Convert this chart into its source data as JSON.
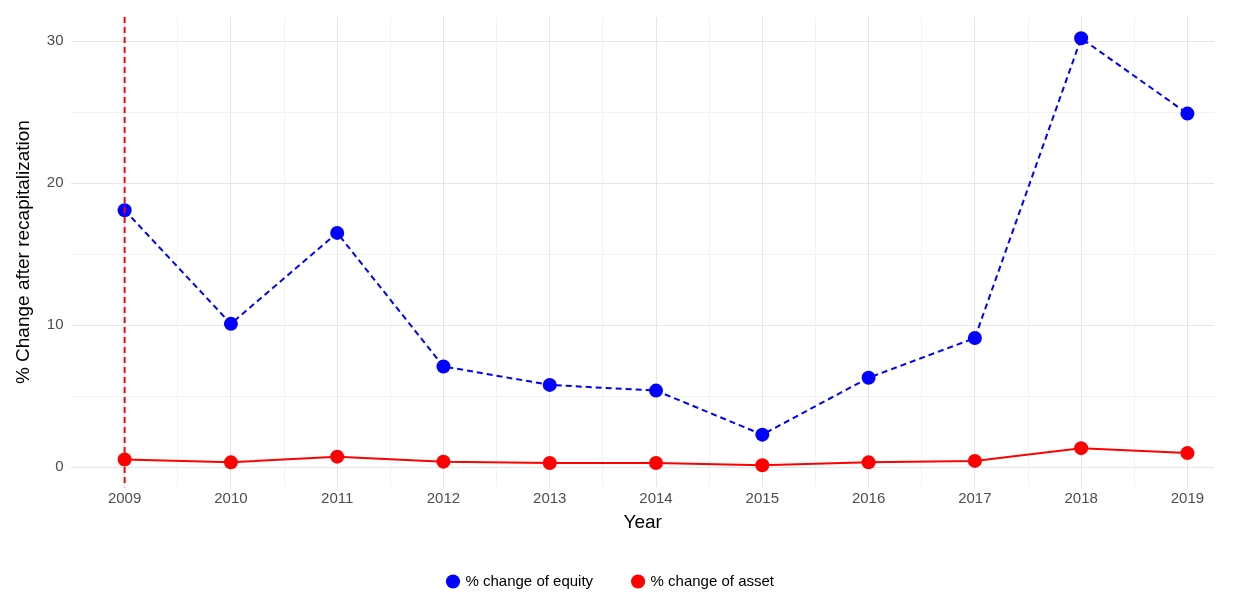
{
  "chart_data": {
    "type": "line",
    "xlabel": "Year",
    "ylabel": "% Change after recapitalization",
    "x": [
      2009,
      2010,
      2011,
      2012,
      2013,
      2014,
      2015,
      2016,
      2017,
      2018,
      2019
    ],
    "series": [
      {
        "name": "% change of equity",
        "color": "#0000ff",
        "line_style": "dashed",
        "values": [
          18.1,
          10.1,
          16.5,
          7.1,
          5.8,
          5.4,
          2.3,
          6.3,
          9.1,
          30.2,
          24.9
        ]
      },
      {
        "name": "% change of asset",
        "color": "#ff0000",
        "line_style": "solid",
        "values": [
          0.55,
          0.35,
          0.75,
          0.4,
          0.3,
          0.3,
          0.15,
          0.35,
          0.45,
          1.35,
          1.0
        ]
      }
    ],
    "xlim": [
      2008.5,
      2019.25
    ],
    "ylim": [
      -1.4,
      31.7
    ],
    "xticks": [
      2009,
      {
        "value": 2009.5,
        "label": null
      },
      2010,
      {
        "value": 2010.5,
        "label": null
      },
      2011,
      {
        "value": 2011.5,
        "label": null
      },
      2012,
      {
        "value": 2012.5,
        "label": null
      },
      2013,
      {
        "value": 2013.5,
        "label": null
      },
      2014,
      {
        "value": 2014.5,
        "label": null
      },
      2015,
      {
        "value": 2015.5,
        "label": null
      },
      2016,
      {
        "value": 2016.5,
        "label": null
      },
      2017,
      {
        "value": 2017.5,
        "label": null
      },
      2018,
      {
        "value": 2018.5,
        "label": null
      },
      2019
    ],
    "yticks": [
      0,
      {
        "value": 5,
        "label": null
      },
      10,
      {
        "value": 15,
        "label": null
      },
      20,
      {
        "value": 25,
        "label": null
      },
      30
    ],
    "ref_lines": [
      {
        "axis": "x",
        "value": 2009,
        "color": "#ff0000",
        "line_style": "dashed"
      }
    ],
    "grid": true,
    "legend": "bottom",
    "marker": "circle"
  }
}
